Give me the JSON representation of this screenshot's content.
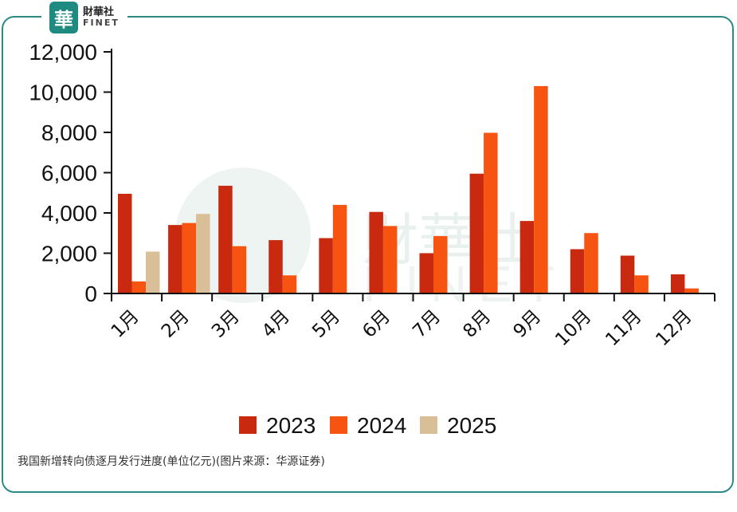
{
  "brand": {
    "mark": "華",
    "name_cn": "財華社",
    "name_en": "FINET",
    "color": "#1e8a80",
    "frame_color": "#2b8a86"
  },
  "caption": "我国新增转向债逐月发行进度(单位亿元)(图片来源：华源证券)",
  "chart_data": {
    "type": "bar",
    "title": "",
    "xlabel": "",
    "ylabel": "",
    "categories": [
      "1月",
      "2月",
      "3月",
      "4月",
      "5月",
      "6月",
      "7月",
      "8月",
      "9月",
      "10月",
      "11月",
      "12月"
    ],
    "ylim": [
      0,
      12000
    ],
    "yticks": [
      0,
      2000,
      4000,
      6000,
      8000,
      10000,
      12000
    ],
    "ytick_labels": [
      "0",
      "2,000",
      "4,000",
      "6,000",
      "8,000",
      "10,000",
      "12,000"
    ],
    "grid": false,
    "legend_position": "bottom-center",
    "series": [
      {
        "name": "2023",
        "color": "#c8290f",
        "values": [
          4950,
          3400,
          5350,
          2650,
          2750,
          4050,
          2000,
          5950,
          3600,
          2200,
          1880,
          950
        ]
      },
      {
        "name": "2024",
        "color": "#f85411",
        "values": [
          600,
          3500,
          2350,
          900,
          4400,
          3350,
          2850,
          7980,
          10300,
          3000,
          900,
          250
        ]
      },
      {
        "name": "2025",
        "color": "#d9bf98",
        "values": [
          2080,
          3950,
          null,
          null,
          null,
          null,
          null,
          null,
          null,
          null,
          null,
          null
        ]
      }
    ]
  }
}
